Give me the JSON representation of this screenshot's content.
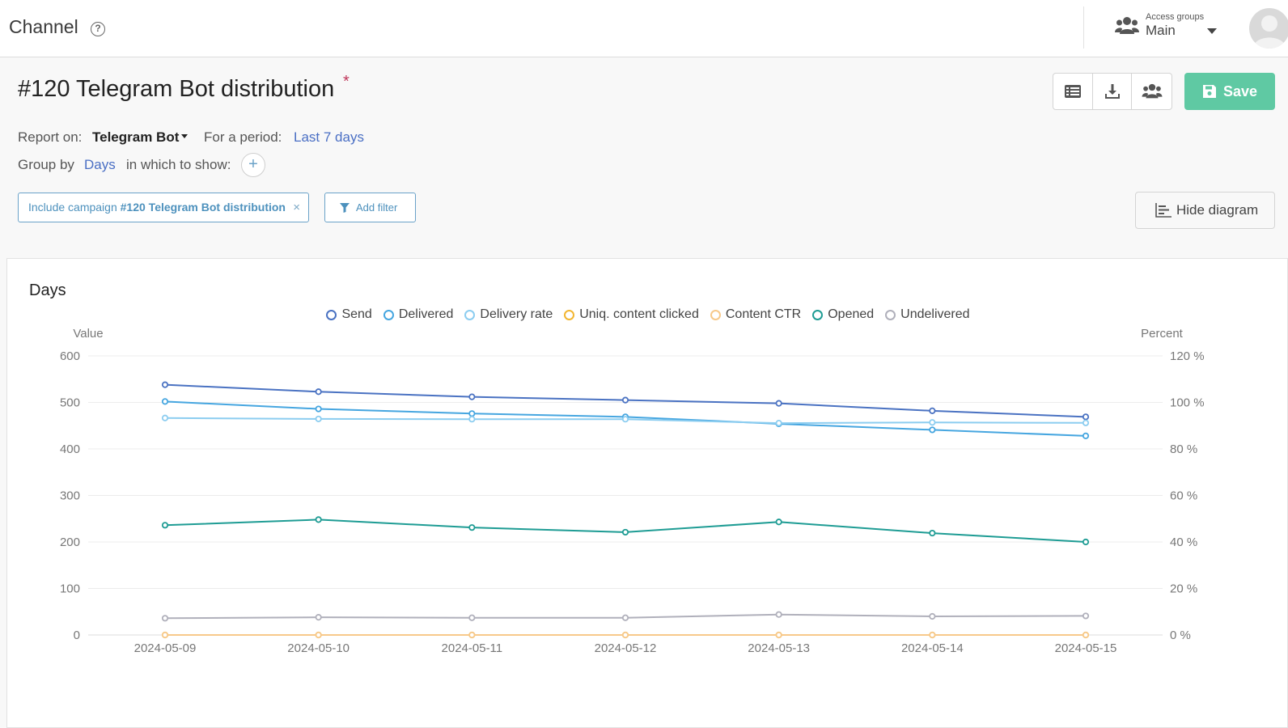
{
  "header": {
    "app_title": "Channel",
    "help": "?",
    "access_groups_label": "Access groups",
    "access_groups_value": "Main"
  },
  "report": {
    "title": "#120 Telegram Bot distribution",
    "required_marker": "*",
    "report_on_label": "Report on:",
    "report_on_value": "Telegram Bot",
    "period_label": "For a period:",
    "period_value": "Last 7 days",
    "group_by_label": "Group by",
    "group_by_value": "Days",
    "show_label": "in which to show:",
    "add_show": "+"
  },
  "toolbar": {
    "save_label": "Save",
    "hide_diagram_label": "Hide diagram",
    "add_filter_label": "Add filter"
  },
  "filters": [
    {
      "prefix": "Include campaign",
      "value": "#120 Telegram Bot distribution",
      "close": "×"
    }
  ],
  "icons": {
    "help": "help-icon",
    "group": "group-icon",
    "list": "list-icon",
    "download": "download-icon",
    "share": "share-users-icon",
    "save": "floppy-icon",
    "filter": "filter-icon",
    "chart": "bar-chart-icon"
  },
  "colors": {
    "accent_save": "#5fc9a3",
    "link": "#4a6fc4",
    "chip": "#4d91bd"
  },
  "chart_data": {
    "type": "line",
    "title": "Days",
    "ylabel": "Value",
    "y2label": "Percent",
    "ylim": [
      0,
      600
    ],
    "y2lim": [
      0,
      120
    ],
    "yticks": [
      0,
      100,
      200,
      300,
      400,
      500,
      600
    ],
    "y2ticks": [
      "0 %",
      "20 %",
      "40 %",
      "60 %",
      "80 %",
      "100 %",
      "120 %"
    ],
    "x": [
      "2024-05-09",
      "2024-05-10",
      "2024-05-11",
      "2024-05-12",
      "2024-05-13",
      "2024-05-14",
      "2024-05-15"
    ],
    "grid": true,
    "legend_position": "top-center",
    "series": [
      {
        "name": "Send",
        "axis": "left",
        "color": "#4a72c2",
        "values": [
          538,
          523,
          512,
          505,
          498,
          482,
          469
        ]
      },
      {
        "name": "Delivered",
        "axis": "left",
        "color": "#46a6e0",
        "values": [
          502,
          486,
          476,
          469,
          454,
          441,
          428
        ]
      },
      {
        "name": "Delivery rate",
        "axis": "right",
        "color": "#8ccdf0",
        "values": [
          93.3,
          92.9,
          92.8,
          92.8,
          91.1,
          91.4,
          91.2
        ]
      },
      {
        "name": "Uniq. content clicked",
        "axis": "left",
        "color": "#f2b632",
        "values": [
          0,
          0,
          0,
          0,
          0,
          0,
          0
        ]
      },
      {
        "name": "Content CTR",
        "axis": "right",
        "color": "#f7c98a",
        "values": [
          0,
          0,
          0,
          0,
          0,
          0,
          0
        ]
      },
      {
        "name": "Opened",
        "axis": "left",
        "color": "#1e9c94",
        "values": [
          236,
          248,
          231,
          221,
          243,
          219,
          200
        ]
      },
      {
        "name": "Undelivered",
        "axis": "left",
        "color": "#b0b0bb",
        "values": [
          36,
          38,
          37,
          37,
          44,
          40,
          41
        ]
      }
    ]
  }
}
